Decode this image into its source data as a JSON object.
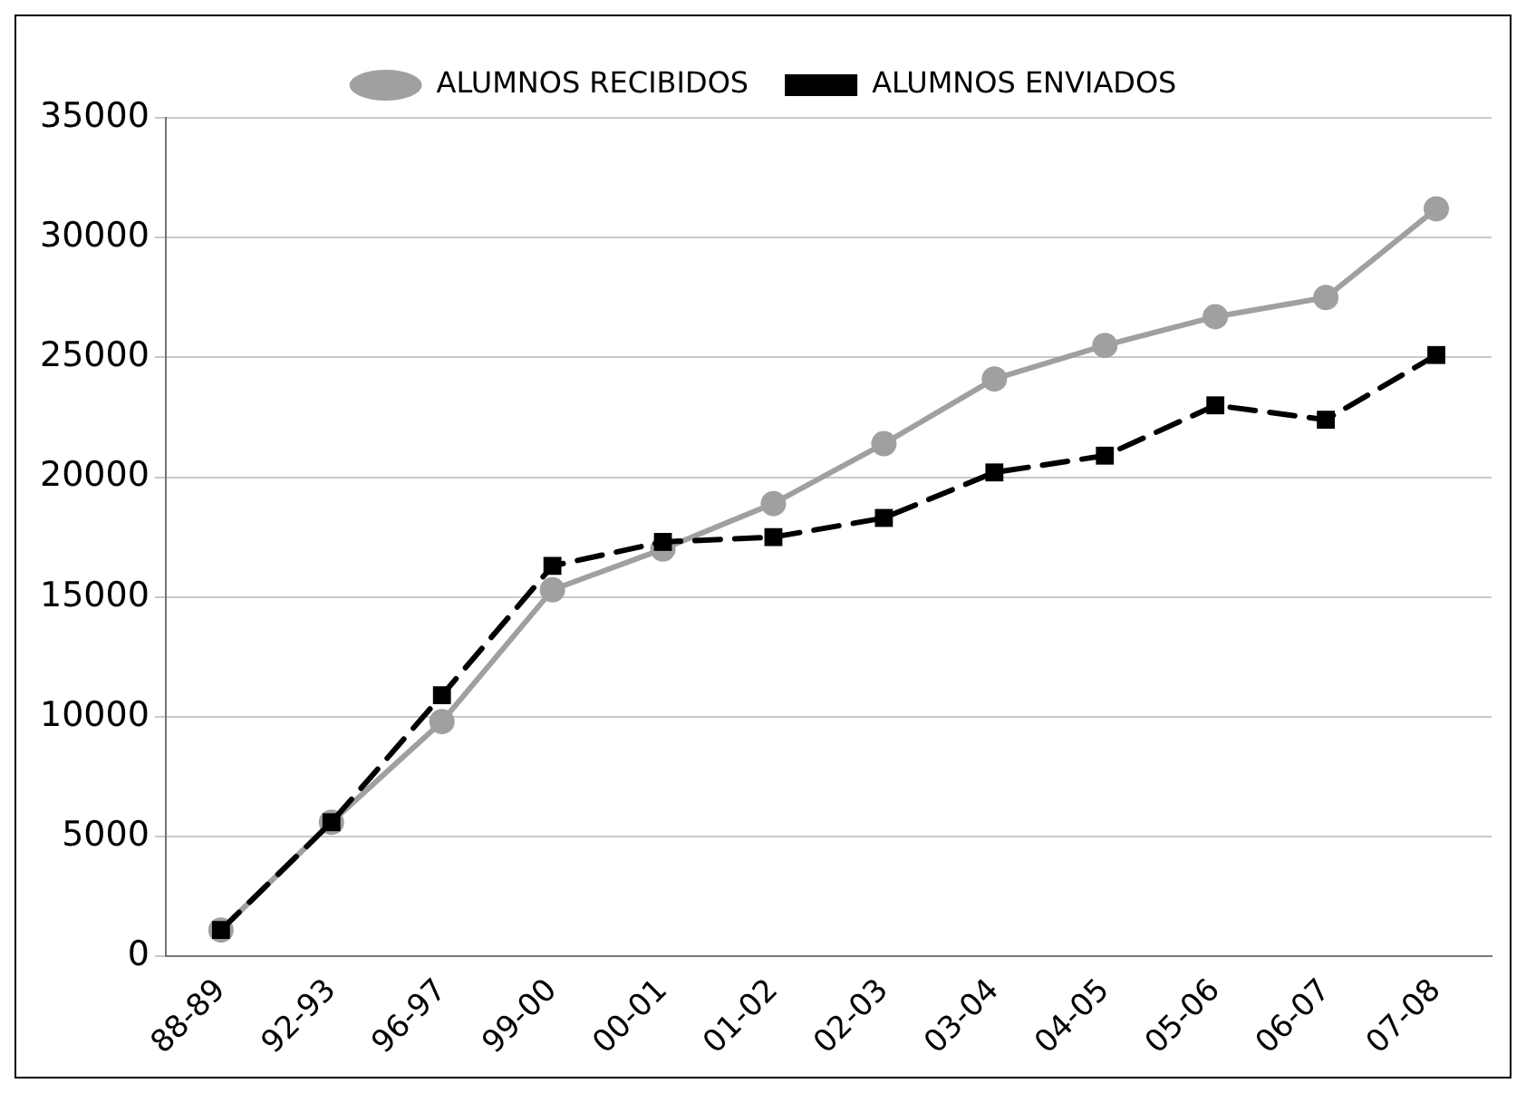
{
  "chart_data": {
    "type": "line",
    "categories": [
      "88-89",
      "92-93",
      "96-97",
      "99-00",
      "00-01",
      "01-02",
      "02-03",
      "03-04",
      "04-05",
      "05-06",
      "06-07",
      "07-08"
    ],
    "series": [
      {
        "name": "ALUMNOS RECIBIDOS",
        "color": "#a0a0a0",
        "marker": "circle",
        "line_style": "solid",
        "values": [
          1100,
          5600,
          9800,
          15300,
          17000,
          18900,
          21400,
          24100,
          25500,
          26700,
          27500,
          31200
        ]
      },
      {
        "name": "ALUMNOS ENVIADOS",
        "color": "#000000",
        "marker": "square",
        "line_style": "dashed",
        "values": [
          1100,
          5600,
          10900,
          16300,
          17300,
          17500,
          18300,
          20200,
          20900,
          23000,
          22400,
          25100
        ]
      }
    ],
    "ylim": [
      0,
      35000
    ],
    "yticks": [
      0,
      5000,
      10000,
      15000,
      20000,
      25000,
      30000,
      35000
    ],
    "grid": "y",
    "legend": "top"
  }
}
